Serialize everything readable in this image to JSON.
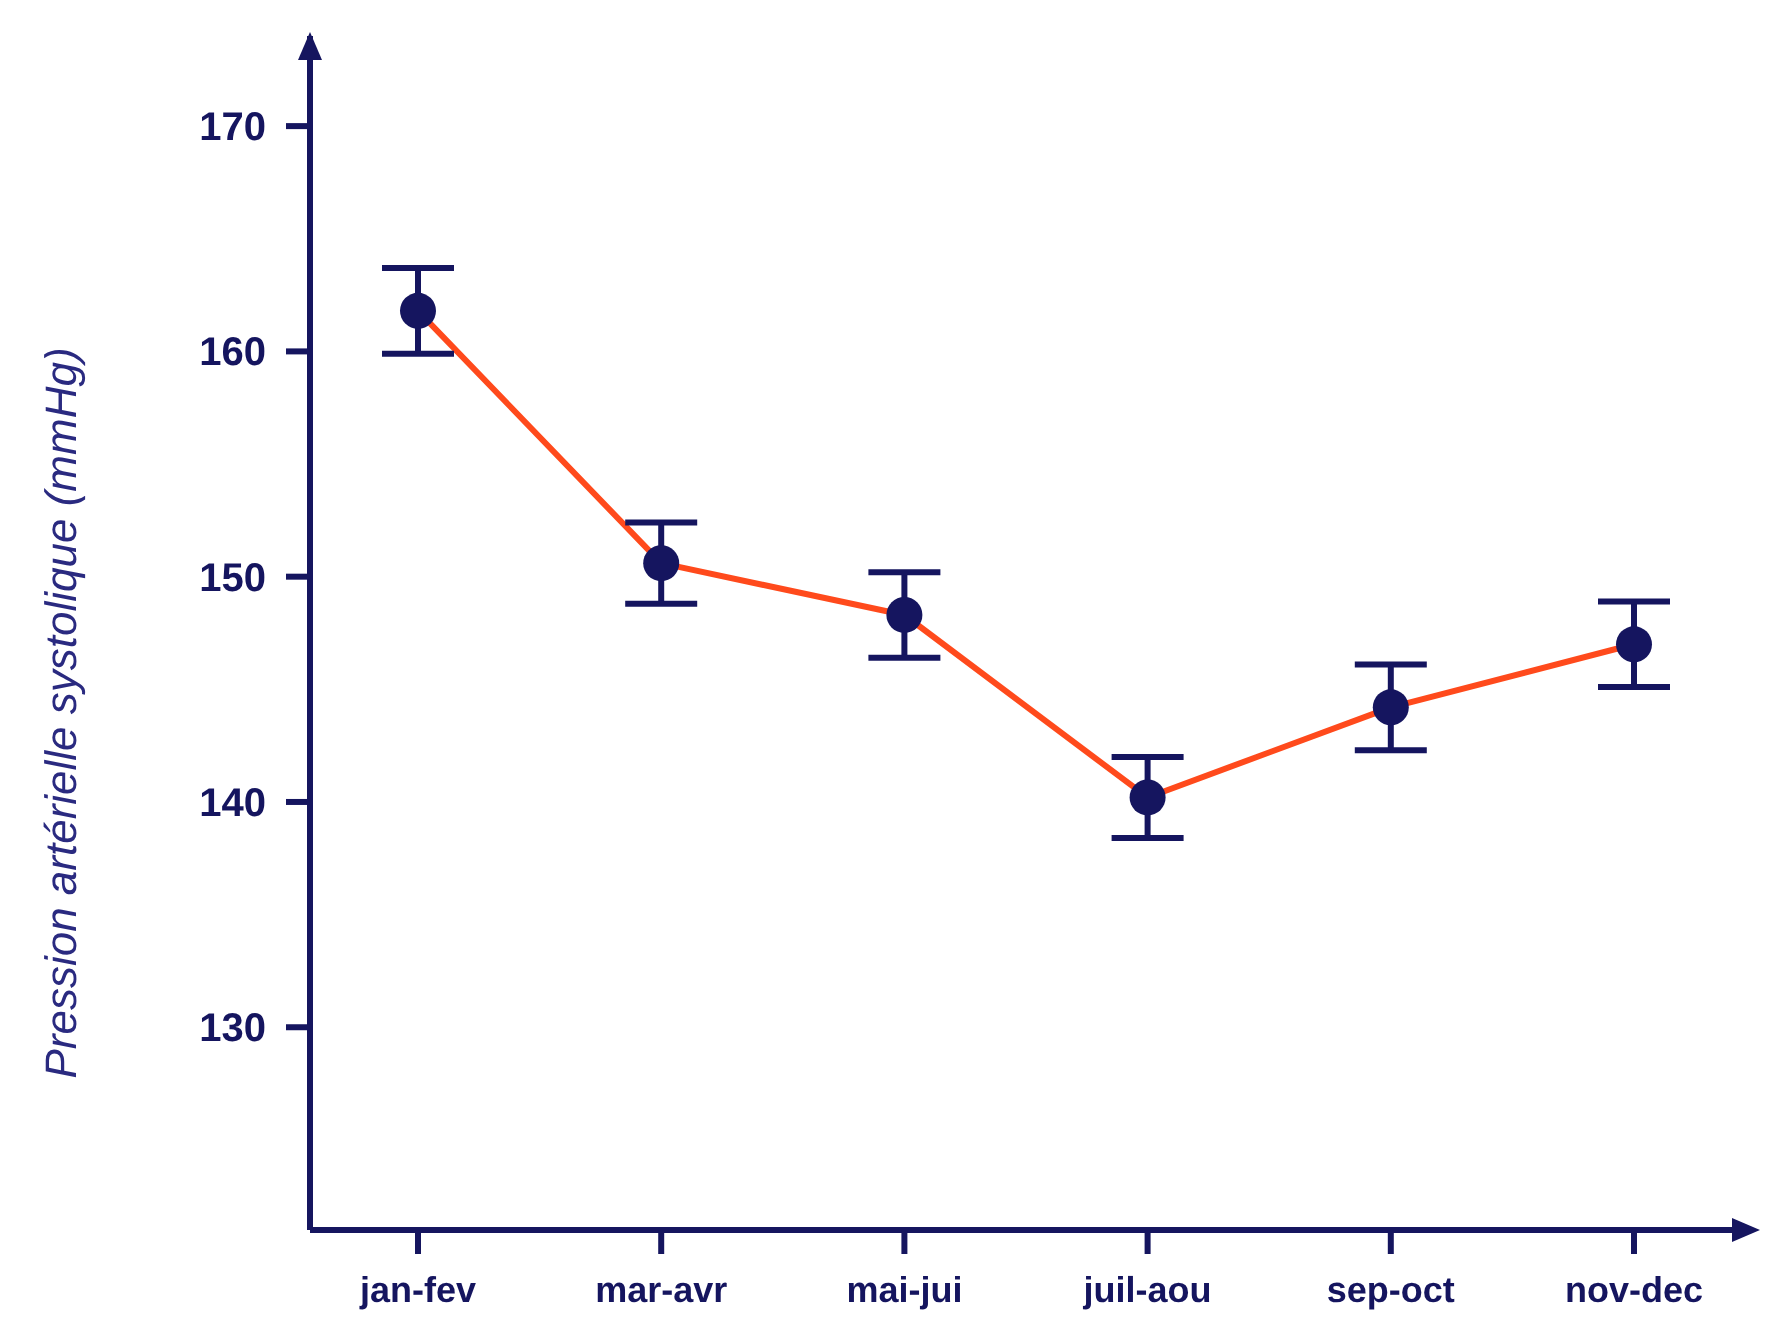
{
  "chart_data": {
    "type": "line",
    "ylabel": "Pression artérielle systolique (mmHg)",
    "categories": [
      "jan-fev",
      "mar-avr",
      "mai-jui",
      "juil-aou",
      "sep-oct",
      "nov-dec"
    ],
    "series": [
      {
        "color": "#ff4a1c",
        "values": [
          161.8,
          150.6,
          148.3,
          140.2,
          144.2,
          147.0
        ],
        "errors": [
          1.9,
          1.8,
          1.9,
          1.8,
          1.9,
          1.9
        ]
      }
    ],
    "ylim": [
      121,
      174
    ],
    "yticks": [
      130,
      140,
      150,
      160,
      170
    ],
    "grid": false,
    "marker": "circle",
    "line_style": "solid"
  }
}
